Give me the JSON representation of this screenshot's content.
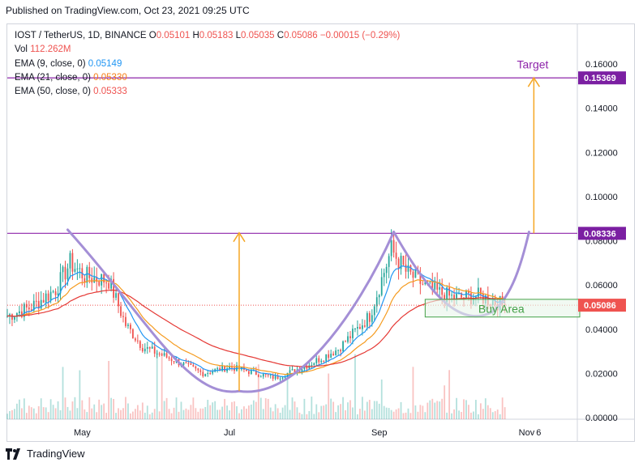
{
  "header": {
    "published": "Published on TradingView.com, Oct 23, 2021 09:25 UTC"
  },
  "legend": {
    "symbol": "IOST / TetherUS, 1D, BINANCE",
    "open_label": "O",
    "open": "0.05101",
    "high_label": "H",
    "high": "0.05183",
    "low_label": "L",
    "low": "0.05035",
    "close_label": "C",
    "close": "0.05086",
    "change": "−0.00015 (−0.29%)",
    "vol_label": "Vol",
    "vol": "112.262M",
    "ema9_label": "EMA (9, close, 0)",
    "ema9": "0.05149",
    "ema21_label": "EMA (21, close, 0)",
    "ema21": "0.05330",
    "ema50_label": "EMA (50, close, 0)",
    "ema50": "0.05333"
  },
  "footer": {
    "brand": "TradingView"
  },
  "colors": {
    "up": "#26a69a",
    "down": "#ef5350",
    "ema9": "#2196f3",
    "ema21": "#f59b1f",
    "ema50": "#e53935",
    "level": "#8e24aa",
    "arrow": "#f5a623",
    "pattern": "#a48fd6",
    "buy_area": "#43a047"
  },
  "chart_data": {
    "type": "candlestick",
    "symbol": "IOST/USDT",
    "timeframe": "1D",
    "exchange": "BINANCE",
    "ylim": [
      0,
      0.17
    ],
    "y_ticks": [
      "0.16000",
      "0.14000",
      "0.12000",
      "0.10000",
      "0.08000",
      "0.06000",
      "0.04000",
      "0.02000",
      "0.00000"
    ],
    "y_tick_values": [
      0.16,
      0.14,
      0.12,
      0.1,
      0.08,
      0.06,
      0.04,
      0.02,
      0.0
    ],
    "x_ticks": [
      {
        "label": "May",
        "date": "2021-05-01"
      },
      {
        "label": "Jul",
        "date": "2021-07-01"
      },
      {
        "label": "Sep",
        "date": "2021-09-01"
      },
      {
        "label": "Nov",
        "date": "2021-11-01"
      },
      {
        "label": "6",
        "date": "2021-11-06"
      }
    ],
    "x_range": [
      "2021-03-31",
      "2021-11-22"
    ],
    "last_date": "2021-10-23",
    "price_path": [
      [
        "2021-03-31",
        0.046
      ],
      [
        "2021-04-10",
        0.05
      ],
      [
        "2021-04-20",
        0.058
      ],
      [
        "2021-04-26",
        0.07
      ],
      [
        "2021-05-02",
        0.064
      ],
      [
        "2021-05-12",
        0.062
      ],
      [
        "2021-05-19",
        0.042
      ],
      [
        "2021-05-26",
        0.032
      ],
      [
        "2021-06-08",
        0.026
      ],
      [
        "2021-06-20",
        0.02
      ],
      [
        "2021-07-01",
        0.023
      ],
      [
        "2021-07-12",
        0.02
      ],
      [
        "2021-07-20",
        0.018
      ],
      [
        "2021-08-01",
        0.023
      ],
      [
        "2021-08-15",
        0.031
      ],
      [
        "2021-08-28",
        0.046
      ],
      [
        "2021-09-06",
        0.076
      ],
      [
        "2021-09-12",
        0.066
      ],
      [
        "2021-09-22",
        0.058
      ],
      [
        "2021-10-02",
        0.054
      ],
      [
        "2021-10-12",
        0.055
      ],
      [
        "2021-10-23",
        0.0509
      ]
    ],
    "ema_lines": [
      {
        "name": "EMA (9, close, 0)",
        "last": 0.05149
      },
      {
        "name": "EMA (21, close, 0)",
        "last": 0.0533
      },
      {
        "name": "EMA (50, close, 0)",
        "last": 0.05333
      }
    ],
    "price_labels": [
      {
        "value": 0.15369,
        "label": "0.15369",
        "color": "#7b1fa2"
      },
      {
        "value": 0.08336,
        "label": "0.08336",
        "color": "#7b1fa2"
      },
      {
        "value": 0.05086,
        "label": "0.05086",
        "color": "#ef5350"
      }
    ],
    "horizontal_levels": [
      0.15369,
      0.08336
    ],
    "annotations": [
      {
        "type": "text",
        "text": "Target",
        "date": "2021-10-28",
        "value": 0.158
      },
      {
        "type": "text",
        "text": "Buy Area",
        "date": "2021-10-12",
        "value": 0.0475
      },
      {
        "type": "arrow",
        "date": "2021-07-05",
        "from": 0.012,
        "to": 0.0836
      },
      {
        "type": "arrow",
        "date": "2021-11-04",
        "from": 0.0834,
        "to": 0.1537
      }
    ],
    "buy_area": {
      "from_date": "2021-09-20",
      "to_date": "2021-11-23",
      "low": 0.0455,
      "high": 0.0535
    }
  }
}
